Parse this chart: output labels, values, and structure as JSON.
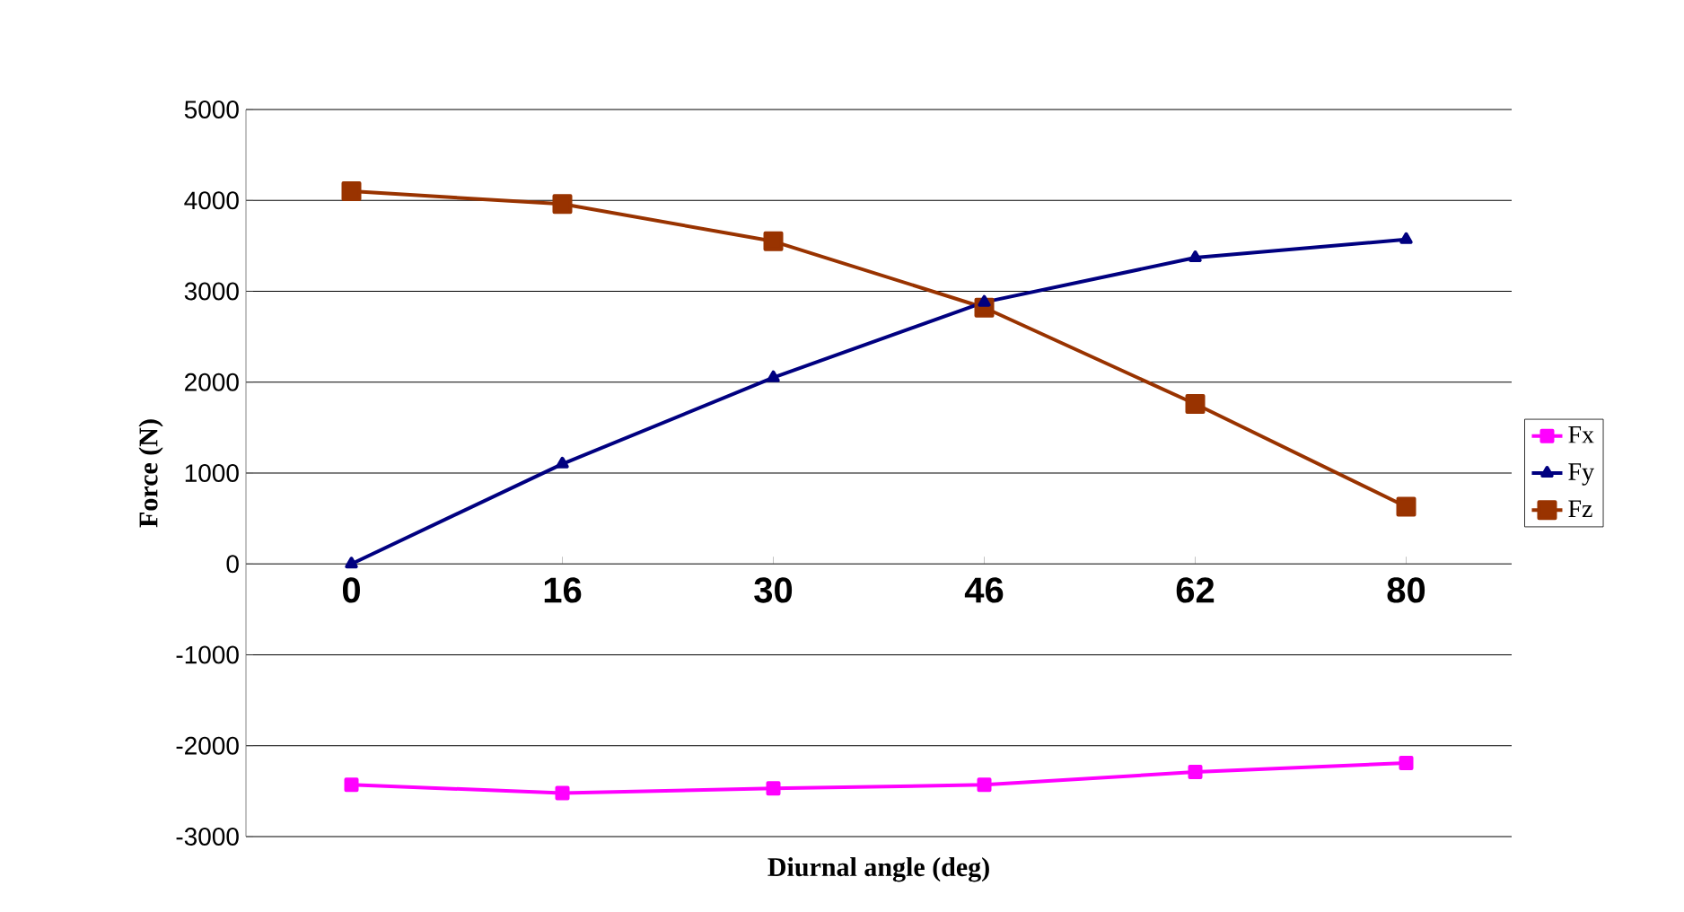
{
  "chart_data": {
    "type": "line",
    "xlabel": "Diurnal angle (deg)",
    "ylabel": "Force (N)",
    "categories": [
      "0",
      "16",
      "30",
      "46",
      "62",
      "80"
    ],
    "series": [
      {
        "name": "Fx",
        "color": "#ff00ff",
        "marker": "square",
        "values": [
          -2430,
          -2520,
          -2470,
          -2430,
          -2290,
          -2190
        ]
      },
      {
        "name": "Fy",
        "color": "#000080",
        "marker": "triangle",
        "values": [
          0,
          1100,
          2050,
          2880,
          3370,
          3570
        ]
      },
      {
        "name": "Fz",
        "color": "#993300",
        "marker": "square",
        "values": [
          4100,
          3960,
          3550,
          2820,
          1760,
          630
        ]
      }
    ],
    "ylim": [
      -3000,
      5000
    ],
    "yticks": [
      -3000,
      -2000,
      -1000,
      0,
      1000,
      2000,
      3000,
      4000,
      5000
    ],
    "grid": "y",
    "legend": "right",
    "line_style": "solid"
  }
}
